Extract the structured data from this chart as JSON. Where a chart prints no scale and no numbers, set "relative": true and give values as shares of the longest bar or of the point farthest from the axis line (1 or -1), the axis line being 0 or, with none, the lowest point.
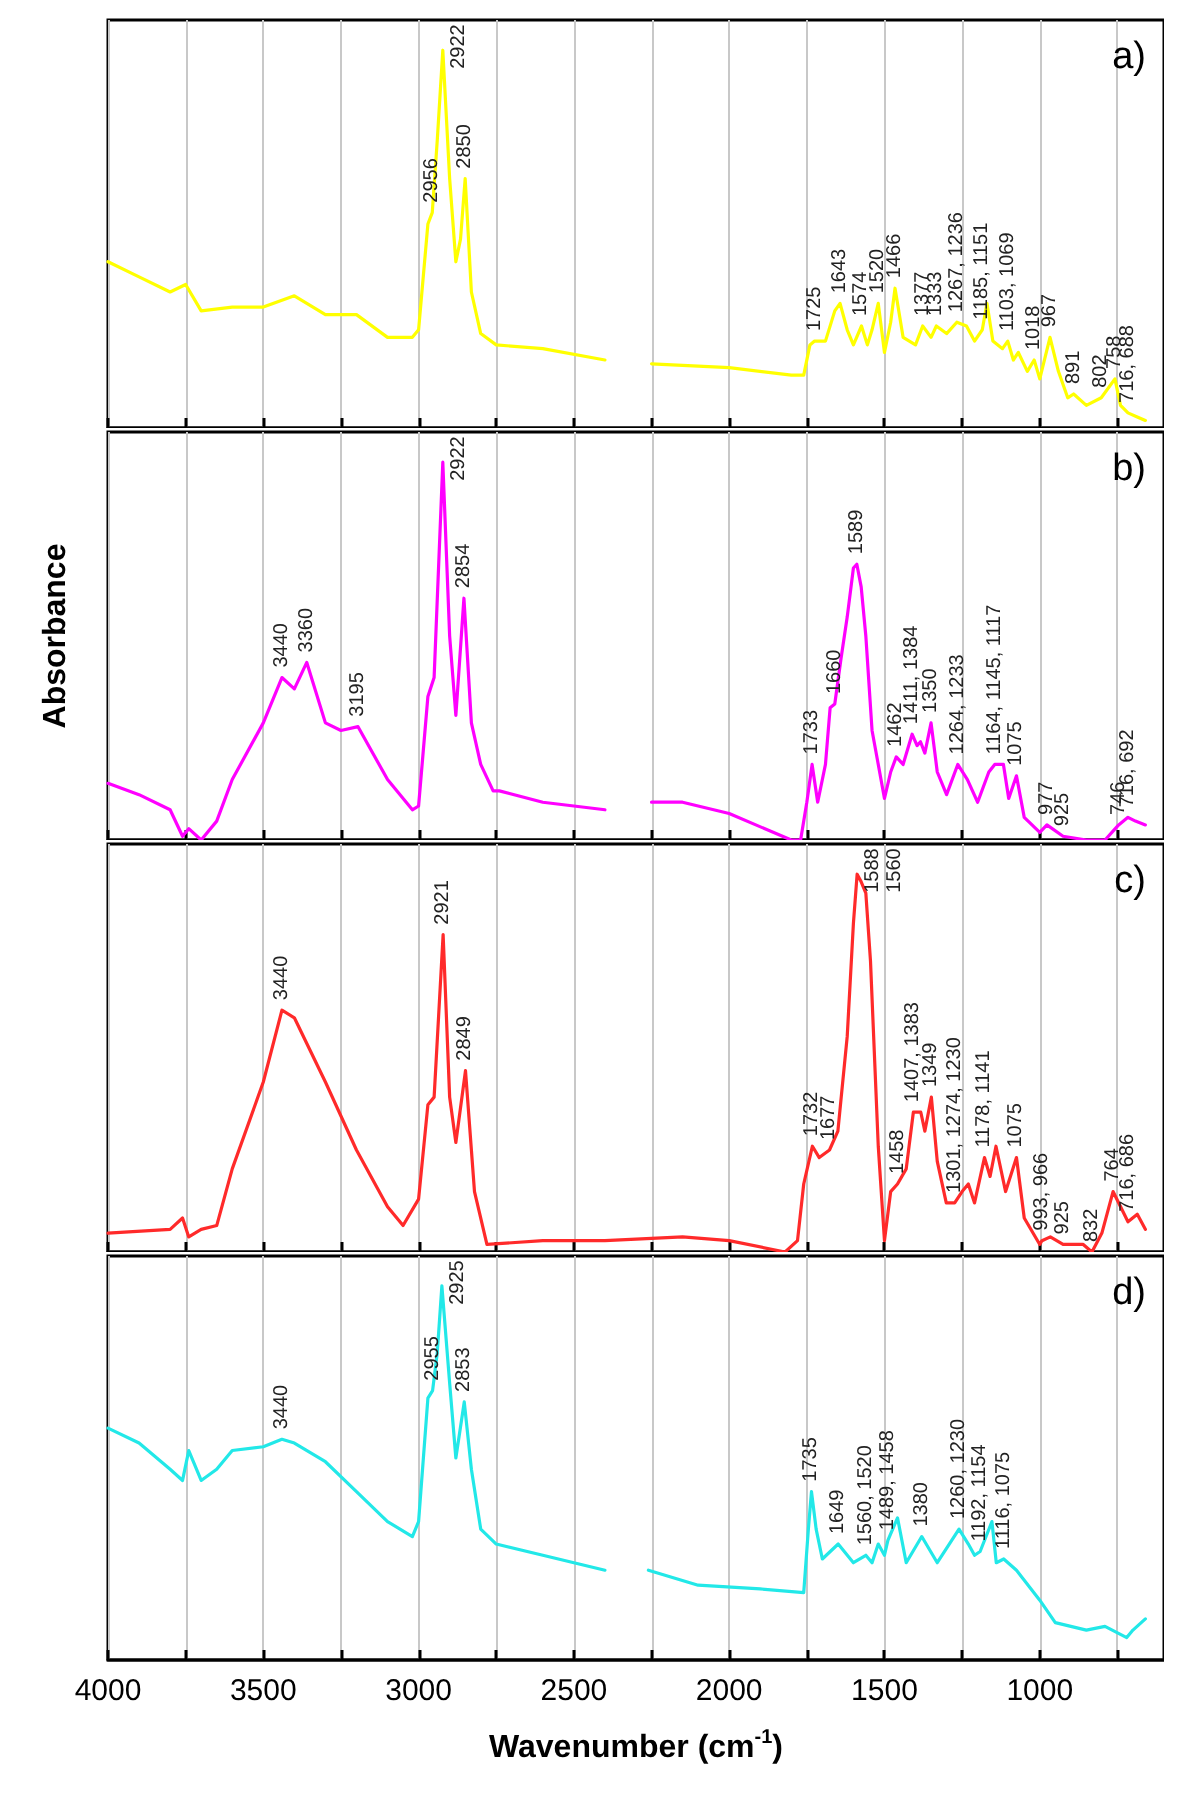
{
  "chart_data": [
    {
      "type": "line",
      "title": "a)",
      "relative": true,
      "xlim": [
        4000,
        600
      ],
      "xticks": [
        4000,
        {
          "value": 3750,
          "label": null
        },
        3500,
        {
          "value": 3250,
          "label": null
        },
        3000,
        {
          "value": 2750,
          "label": null
        },
        2500,
        {
          "value": 2250,
          "label": null
        },
        2000,
        {
          "value": 1750,
          "label": null
        },
        1500,
        {
          "value": 1250,
          "label": null
        },
        1000,
        {
          "value": 750,
          "label": null
        }
      ],
      "tick_labels": false,
      "grid": "x",
      "marker": "none",
      "x": [
        4000,
        3900,
        3800,
        3750,
        3700,
        3600,
        3500,
        3400,
        3300,
        3200,
        3100,
        3020,
        3000,
        2970,
        2956,
        2940,
        2922,
        2900,
        2880,
        2865,
        2850,
        2830,
        2800,
        2750,
        2600,
        2400,
        2380,
        2250,
        2000,
        1800,
        1760,
        1740,
        1725,
        1690,
        1660,
        1643,
        1620,
        1600,
        1574,
        1555,
        1540,
        1520,
        1500,
        1480,
        1466,
        1440,
        1400,
        1377,
        1350,
        1333,
        1300,
        1267,
        1236,
        1210,
        1185,
        1170,
        1151,
        1120,
        1103,
        1085,
        1069,
        1040,
        1018,
        1000,
        967,
        940,
        910,
        891,
        850,
        802,
        758,
        740,
        716,
        688,
        660
      ],
      "series": [
        {
          "color": "#ffff00",
          "values": [
            0.44,
            0.4,
            0.36,
            0.38,
            0.31,
            0.32,
            0.32,
            0.35,
            0.3,
            0.3,
            0.24,
            0.24,
            0.26,
            0.54,
            0.57,
            0.76,
            1.0,
            0.66,
            0.44,
            0.5,
            0.66,
            0.36,
            0.25,
            0.22,
            0.21,
            0.18,
            null,
            0.17,
            0.16,
            0.14,
            0.14,
            0.22,
            0.23,
            0.23,
            0.31,
            0.33,
            0.26,
            0.22,
            0.27,
            0.22,
            0.26,
            0.33,
            0.2,
            0.28,
            0.37,
            0.24,
            0.22,
            0.27,
            0.24,
            0.27,
            0.25,
            0.28,
            0.27,
            0.23,
            0.26,
            0.33,
            0.23,
            0.21,
            0.23,
            0.18,
            0.2,
            0.15,
            0.18,
            0.13,
            0.24,
            0.15,
            0.08,
            0.09,
            0.06,
            0.08,
            0.13,
            0.06,
            0.04,
            0.03,
            0.02
          ]
        }
      ],
      "annotations": [
        {
          "text": "2956",
          "x": 2956,
          "y": 0.57
        },
        {
          "text": "2922",
          "x": 2922,
          "y": 1.0
        },
        {
          "text": "2850",
          "x": 2850,
          "y": 0.66
        },
        {
          "text": "1725",
          "x": 1725,
          "y": 0.23
        },
        {
          "text": "1643",
          "x": 1643,
          "y": 0.33
        },
        {
          "text": "1574",
          "x": 1574,
          "y": 0.27
        },
        {
          "text": "1520",
          "x": 1520,
          "y": 0.33
        },
        {
          "text": "1466",
          "x": 1466,
          "y": 0.37
        },
        {
          "text": "1377",
          "x": 1377,
          "y": 0.27
        },
        {
          "text": "1333",
          "x": 1333,
          "y": 0.27
        },
        {
          "text": "1267, 1236",
          "x": 1267,
          "y": 0.28
        },
        {
          "text": "1185, 1151",
          "x": 1185,
          "y": 0.26
        },
        {
          "text": "1103, 1069",
          "x": 1103,
          "y": 0.23
        },
        {
          "text": "1018",
          "x": 1018,
          "y": 0.18
        },
        {
          "text": "967",
          "x": 967,
          "y": 0.24
        },
        {
          "text": "891",
          "x": 891,
          "y": 0.09
        },
        {
          "text": "802",
          "x": 802,
          "y": 0.08
        },
        {
          "text": "758",
          "x": 758,
          "y": 0.13
        },
        {
          "text": "716, 688",
          "x": 716,
          "y": 0.04
        }
      ]
    },
    {
      "type": "line",
      "title": "b)",
      "ylabel": "Absorbance",
      "relative": true,
      "xlim": [
        4000,
        600
      ],
      "xticks": [
        4000,
        {
          "value": 3750,
          "label": null
        },
        3500,
        {
          "value": 3250,
          "label": null
        },
        3000,
        {
          "value": 2750,
          "label": null
        },
        2500,
        {
          "value": 2250,
          "label": null
        },
        2000,
        {
          "value": 1750,
          "label": null
        },
        1500,
        {
          "value": 1250,
          "label": null
        },
        1000,
        {
          "value": 750,
          "label": null
        }
      ],
      "tick_labels": false,
      "grid": "x",
      "marker": "none",
      "x": [
        4000,
        3900,
        3800,
        3760,
        3740,
        3700,
        3650,
        3600,
        3500,
        3440,
        3400,
        3360,
        3300,
        3250,
        3195,
        3100,
        3020,
        3000,
        2970,
        2950,
        2922,
        2900,
        2880,
        2854,
        2830,
        2800,
        2760,
        2740,
        2600,
        2400,
        2380,
        2250,
        2150,
        2000,
        1800,
        1770,
        1750,
        1733,
        1715,
        1690,
        1675,
        1660,
        1640,
        1620,
        1600,
        1589,
        1575,
        1560,
        1540,
        1500,
        1480,
        1462,
        1440,
        1411,
        1395,
        1384,
        1370,
        1350,
        1330,
        1300,
        1264,
        1233,
        1200,
        1164,
        1145,
        1117,
        1100,
        1075,
        1050,
        1000,
        977,
        925,
        850,
        790,
        746,
        716,
        692,
        660
      ],
      "series": [
        {
          "color": "#ff00ff",
          "values": [
            0.15,
            0.12,
            0.08,
            0.01,
            0.03,
            0,
            0.05,
            0.16,
            0.31,
            0.43,
            0.4,
            0.47,
            0.31,
            0.29,
            0.3,
            0.16,
            0.08,
            0.09,
            0.38,
            0.43,
            1.0,
            0.54,
            0.33,
            0.64,
            0.31,
            0.2,
            0.13,
            0.13,
            0.1,
            0.08,
            null,
            0.1,
            0.1,
            0.07,
            0,
            0,
            0.1,
            0.2,
            0.1,
            0.2,
            0.35,
            0.36,
            0.48,
            0.59,
            0.72,
            0.73,
            0.67,
            0.54,
            0.29,
            0.11,
            0.18,
            0.22,
            0.2,
            0.28,
            0.25,
            0.26,
            0.23,
            0.31,
            0.18,
            0.12,
            0.2,
            0.16,
            0.1,
            0.18,
            0.2,
            0.2,
            0.11,
            0.17,
            0.06,
            0.02,
            0.04,
            0.01,
            0,
            0,
            0.04,
            0.06,
            0.05,
            0.04
          ]
        }
      ],
      "annotations": [
        {
          "text": "3440",
          "x": 3440,
          "y": 0.43
        },
        {
          "text": "3360",
          "x": 3360,
          "y": 0.47
        },
        {
          "text": "3195",
          "x": 3195,
          "y": 0.3
        },
        {
          "text": "2922",
          "x": 2922,
          "y": 1.0
        },
        {
          "text": "2854",
          "x": 2854,
          "y": 0.64
        },
        {
          "text": "1733",
          "x": 1733,
          "y": 0.2
        },
        {
          "text": "1660",
          "x": 1660,
          "y": 0.36
        },
        {
          "text": "1589",
          "x": 1589,
          "y": 0.73
        },
        {
          "text": "1462",
          "x": 1462,
          "y": 0.22
        },
        {
          "text": "1411, 1384",
          "x": 1411,
          "y": 0.28
        },
        {
          "text": "1350",
          "x": 1350,
          "y": 0.31
        },
        {
          "text": "1264, 1233",
          "x": 1264,
          "y": 0.2
        },
        {
          "text": "1164, 1145, 1117",
          "x": 1145,
          "y": 0.2
        },
        {
          "text": "1075",
          "x": 1075,
          "y": 0.17
        },
        {
          "text": "977",
          "x": 977,
          "y": 0.04
        },
        {
          "text": "925",
          "x": 925,
          "y": 0.01
        },
        {
          "text": "746",
          "x": 746,
          "y": 0.04
        },
        {
          "text": "716, 692",
          "x": 716,
          "y": 0.06
        }
      ]
    },
    {
      "type": "line",
      "title": "c)",
      "relative": true,
      "xlim": [
        4000,
        600
      ],
      "xticks": [
        4000,
        {
          "value": 3750,
          "label": null
        },
        3500,
        {
          "value": 3250,
          "label": null
        },
        3000,
        {
          "value": 2750,
          "label": null
        },
        2500,
        {
          "value": 2250,
          "label": null
        },
        2000,
        {
          "value": 1750,
          "label": null
        },
        1500,
        {
          "value": 1250,
          "label": null
        },
        1000,
        {
          "value": 750,
          "label": null
        }
      ],
      "tick_labels": false,
      "grid": "x",
      "marker": "none",
      "x": [
        4000,
        3800,
        3760,
        3740,
        3700,
        3650,
        3600,
        3500,
        3440,
        3400,
        3300,
        3200,
        3100,
        3050,
        3000,
        2970,
        2950,
        2921,
        2900,
        2880,
        2849,
        2820,
        2780,
        2600,
        2400,
        2150,
        2000,
        1820,
        1780,
        1760,
        1732,
        1710,
        1677,
        1650,
        1620,
        1600,
        1588,
        1575,
        1560,
        1545,
        1520,
        1500,
        1480,
        1458,
        1430,
        1407,
        1383,
        1370,
        1349,
        1330,
        1301,
        1274,
        1250,
        1230,
        1210,
        1178,
        1160,
        1141,
        1110,
        1075,
        1050,
        1000,
        993,
        966,
        925,
        860,
        832,
        800,
        764,
        716,
        686,
        660
      ],
      "series": [
        {
          "color": "#ff2a2a",
          "values": [
            0.05,
            0.06,
            0.09,
            0.04,
            0.06,
            0.07,
            0.22,
            0.45,
            0.64,
            0.62,
            0.45,
            0.27,
            0.12,
            0.07,
            0.14,
            0.39,
            0.41,
            0.84,
            0.41,
            0.29,
            0.48,
            0.16,
            0.02,
            0.03,
            0.03,
            0.04,
            0.03,
            0,
            0.03,
            0.18,
            0.28,
            0.25,
            0.27,
            0.32,
            0.57,
            0.87,
            1.0,
            0.98,
            0.95,
            0.77,
            0.28,
            0.03,
            0.16,
            0.18,
            0.22,
            0.37,
            0.37,
            0.32,
            0.41,
            0.24,
            0.13,
            0.13,
            0.16,
            0.18,
            0.13,
            0.25,
            0.2,
            0.28,
            0.16,
            0.25,
            0.09,
            0.02,
            0.03,
            0.04,
            0.02,
            0.02,
            0,
            0.05,
            0.16,
            0.08,
            0.1,
            0.06
          ]
        }
      ],
      "annotations": [
        {
          "text": "3440",
          "x": 3440,
          "y": 0.64
        },
        {
          "text": "2921",
          "x": 2921,
          "y": 0.84
        },
        {
          "text": "2849",
          "x": 2849,
          "y": 0.48
        },
        {
          "text": "1732",
          "x": 1732,
          "y": 0.28
        },
        {
          "text": "1677",
          "x": 1677,
          "y": 0.27
        },
        {
          "text": "1588",
          "x": 1588,
          "y": 1.0
        },
        {
          "text": "1560",
          "x": 1560,
          "y": 0.95
        },
        {
          "text": "1458",
          "x": 1458,
          "y": 0.18
        },
        {
          "text": "1407, 1383",
          "x": 1407,
          "y": 0.37
        },
        {
          "text": "1349",
          "x": 1349,
          "y": 0.41
        },
        {
          "text": "1301, 1274, 1230",
          "x": 1274,
          "y": 0.13
        },
        {
          "text": "1178, 1141",
          "x": 1178,
          "y": 0.25
        },
        {
          "text": "1075",
          "x": 1075,
          "y": 0.25
        },
        {
          "text": "993, 966",
          "x": 993,
          "y": 0.03
        },
        {
          "text": "925",
          "x": 925,
          "y": 0.02
        },
        {
          "text": "832",
          "x": 832,
          "y": 0
        },
        {
          "text": "764",
          "x": 764,
          "y": 0.16
        },
        {
          "text": "716, 686",
          "x": 716,
          "y": 0.08
        }
      ]
    },
    {
      "type": "line",
      "title": "d)",
      "xlabel": "Wavenumber (cm$^{-1}$)",
      "relative": true,
      "xlim": [
        4000,
        600
      ],
      "xticks": [
        4000,
        {
          "value": 3750,
          "label": null
        },
        3500,
        {
          "value": 3250,
          "label": null
        },
        3000,
        {
          "value": 2750,
          "label": null
        },
        2500,
        {
          "value": 2250,
          "label": null
        },
        2000,
        {
          "value": 1750,
          "label": null
        },
        1500,
        {
          "value": 1250,
          "label": null
        },
        1000,
        {
          "value": 750,
          "label": null
        }
      ],
      "tick_labels": "x",
      "grid": "x",
      "marker": "none",
      "x": [
        4000,
        3900,
        3800,
        3760,
        3740,
        3700,
        3650,
        3600,
        3500,
        3440,
        3400,
        3300,
        3200,
        3100,
        3020,
        3000,
        2970,
        2955,
        2940,
        2925,
        2900,
        2880,
        2853,
        2830,
        2800,
        2750,
        2600,
        2400,
        2380,
        2260,
        2100,
        1900,
        1760,
        1745,
        1735,
        1720,
        1700,
        1649,
        1600,
        1560,
        1540,
        1520,
        1500,
        1489,
        1458,
        1430,
        1380,
        1330,
        1260,
        1230,
        1210,
        1192,
        1154,
        1140,
        1116,
        1075,
        1000,
        950,
        850,
        790,
        720,
        700,
        660
      ],
      "series": [
        {
          "color": "#22e8e8",
          "values": [
            0.62,
            0.58,
            0.51,
            0.48,
            0.56,
            0.48,
            0.51,
            0.56,
            0.57,
            0.59,
            0.58,
            0.53,
            0.45,
            0.37,
            0.33,
            0.37,
            0.7,
            0.72,
            0.82,
            1.0,
            0.74,
            0.54,
            0.69,
            0.51,
            0.35,
            0.31,
            0.28,
            0.24,
            null,
            0.24,
            0.2,
            0.19,
            0.18,
            0.35,
            0.45,
            0.35,
            0.27,
            0.31,
            0.26,
            0.28,
            0.26,
            0.31,
            0.28,
            0.32,
            0.38,
            0.26,
            0.33,
            0.26,
            0.35,
            0.31,
            0.28,
            0.29,
            0.37,
            0.26,
            0.27,
            0.24,
            0.16,
            0.1,
            0.08,
            0.09,
            0.06,
            0.08,
            0.11
          ]
        }
      ],
      "annotations": [
        {
          "text": "3440",
          "x": 3440,
          "y": 0.59
        },
        {
          "text": "2955",
          "x": 2955,
          "y": 0.72
        },
        {
          "text": "2925",
          "x": 2925,
          "y": 1.0
        },
        {
          "text": "2853",
          "x": 2853,
          "y": 0.69
        },
        {
          "text": "1735",
          "x": 1735,
          "y": 0.45
        },
        {
          "text": "1649",
          "x": 1649,
          "y": 0.31
        },
        {
          "text": "1560, 1520",
          "x": 1560,
          "y": 0.28
        },
        {
          "text": "1489, 1458",
          "x": 1489,
          "y": 0.32
        },
        {
          "text": "1380",
          "x": 1380,
          "y": 0.33
        },
        {
          "text": "1260, 1230",
          "x": 1260,
          "y": 0.35
        },
        {
          "text": "1192, 1154",
          "x": 1192,
          "y": 0.29
        },
        {
          "text": "1116, 1075",
          "x": 1116,
          "y": 0.27
        }
      ]
    }
  ]
}
